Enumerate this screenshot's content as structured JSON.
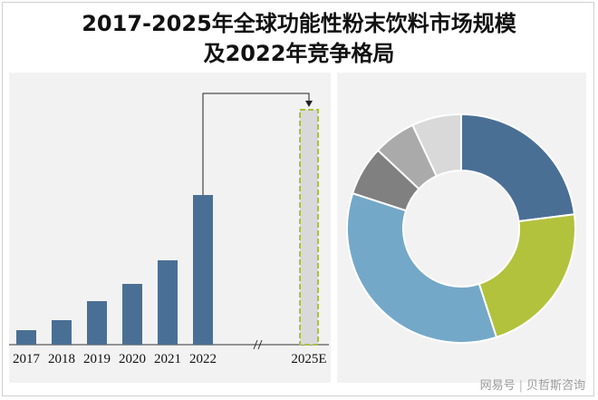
{
  "title_line1": "2017-2025年全球功能性粉末饮料市场规模",
  "title_line2": "及2022年竞争格局",
  "watermark": {
    "platform": "网易号",
    "author": "贝哲斯咨询"
  },
  "chart_data": [
    {
      "type": "bar",
      "categories": [
        "2017",
        "2018",
        "2019",
        "2020",
        "2021",
        "2022",
        "2025E"
      ],
      "values": [
        16,
        27,
        48,
        67,
        93,
        165,
        null
      ],
      "axis_break_between": [
        "2022",
        "2025E"
      ],
      "note": "2025E bar drawn as dashed outline placeholder; arrow from 2022 bar to 2025E",
      "ylim": [
        0,
        260
      ],
      "colors": {
        "bar": "#4a6f95",
        "forecast_fill": "#d9d9d9",
        "forecast_border": "#a9c23f"
      }
    },
    {
      "type": "pie",
      "variant": "donut",
      "slices": [
        {
          "value": 23,
          "color": "#4a6f95"
        },
        {
          "value": 22,
          "color": "#b2c23d"
        },
        {
          "value": 35,
          "color": "#74a8c8"
        },
        {
          "value": 7,
          "color": "#808080"
        },
        {
          "value": 6,
          "color": "#aaaaaa"
        },
        {
          "value": 7,
          "color": "#d9d9d9"
        }
      ]
    }
  ]
}
